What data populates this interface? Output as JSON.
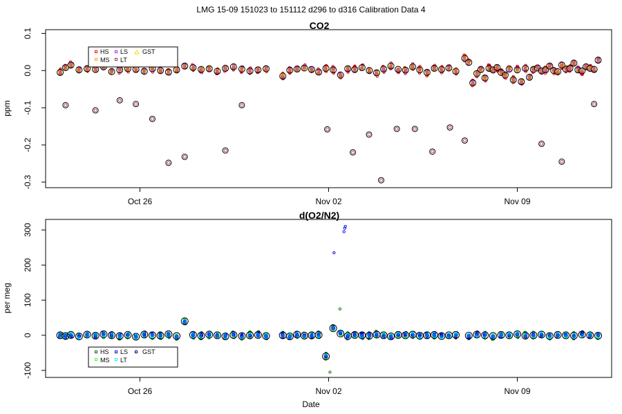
{
  "figure_title": "LMG   15-09    151023 to 151112    d296 to d316   Calibration Data 4",
  "chart_data": [
    {
      "type": "scatter",
      "title": "CO2",
      "ylabel": "ppm",
      "xlabel": "",
      "ylim": [
        -0.315,
        0.11
      ],
      "yticks": [
        0.1,
        0.0,
        -0.1,
        -0.2,
        -0.3
      ],
      "ytick_labels": [
        "0.1",
        "0.0",
        "-0.1",
        "-0.2",
        "-0.3"
      ],
      "xlim": [
        295.5,
        316.5
      ],
      "xticks": [
        299,
        306,
        313
      ],
      "xtick_labels": [
        "Oct 26",
        "Nov 02",
        "Nov 09"
      ],
      "legend": [
        "HS",
        "MS",
        "LS",
        "LT",
        "GST"
      ],
      "legend_position": "top-left",
      "colors": {
        "HS": "#ff0000",
        "MS": "#ffaa00",
        "LS": "#9933ff",
        "LT": "#aa3355",
        "GST": "#ffdd00",
        "mean": "#000000"
      },
      "lines_x": [
        296.04,
        296.24,
        296.44,
        296.74,
        297.04,
        297.35,
        297.65,
        297.95,
        298.25,
        298.55,
        298.85,
        299.16,
        299.46,
        299.76,
        300.06,
        300.36,
        300.66,
        300.97,
        301.27,
        301.57,
        301.87,
        302.17,
        302.47,
        302.78,
        303.08,
        303.38,
        303.68,
        304.3,
        304.56,
        304.83,
        305.1,
        305.37,
        305.63,
        305.9,
        306.17,
        306.44,
        306.71,
        306.97,
        307.24,
        307.51,
        307.78,
        308.04,
        308.31,
        308.58,
        308.85,
        309.12,
        309.38,
        309.65,
        309.92,
        310.19,
        310.46,
        310.72,
        311.05,
        311.2,
        311.35,
        311.5,
        311.65,
        311.8,
        311.95,
        312.1,
        312.25,
        312.4,
        312.55,
        312.7,
        312.85,
        313.0,
        313.15,
        313.3,
        313.45,
        313.6,
        313.75,
        313.9,
        314.05,
        314.2,
        314.35,
        314.5,
        314.65,
        314.8,
        314.95,
        315.1,
        315.25,
        315.4,
        315.55,
        315.7,
        315.85,
        316.0
      ],
      "lines_mean": [
        -0.005,
        0.008,
        0.015,
        0.002,
        0.005,
        0.003,
        0.01,
        -0.003,
        0.002,
        0.005,
        0.003,
        -0.002,
        0.005,
        0.0,
        -0.004,
        0.002,
        0.012,
        0.008,
        0.003,
        0.005,
        -0.002,
        0.006,
        0.01,
        0.004,
        -0.001,
        0.002,
        0.005,
        -0.015,
        0.001,
        0.004,
        0.007,
        0.003,
        -0.004,
        0.006,
        0.002,
        -0.012,
        0.005,
        0.003,
        0.008,
        0.0,
        -0.006,
        0.004,
        0.012,
        0.003,
        0.001,
        0.01,
        0.002,
        -0.005,
        0.006,
        0.003,
        0.007,
        -0.002,
        0.033,
        0.022,
        -0.033,
        -0.008,
        0.003,
        -0.02,
        0.006,
        0.002,
        0.008,
        -0.005,
        -0.012,
        0.004,
        -0.025,
        0.002,
        -0.03,
        0.006,
        -0.018,
        0.003,
        0.007,
        -0.001,
        0.002,
        0.012,
        0.0,
        -0.003,
        0.015,
        0.004,
        0.006,
        0.02,
        0.002,
        -0.001,
        0.01,
        0.006,
        0.003,
        0.028
      ],
      "outliers_x": [
        296.24,
        297.35,
        298.25,
        298.85,
        299.46,
        300.06,
        300.66,
        302.17,
        302.78,
        305.95,
        306.9,
        307.5,
        307.95,
        308.53,
        309.2,
        309.85,
        310.5,
        311.05,
        313.9,
        314.65,
        315.85
      ],
      "outliers_y": [
        -0.093,
        -0.107,
        -0.08,
        -0.09,
        -0.13,
        -0.248,
        -0.232,
        -0.215,
        -0.093,
        -0.158,
        -0.22,
        -0.172,
        -0.295,
        -0.157,
        -0.157,
        -0.218,
        -0.153,
        -0.188,
        -0.197,
        -0.245,
        -0.09
      ]
    },
    {
      "type": "scatter",
      "title": "d(O2/N2)",
      "ylabel": "per meg",
      "xlabel": "Date",
      "ylim": [
        -120,
        330
      ],
      "yticks": [
        -100,
        0,
        100,
        200,
        300
      ],
      "ytick_labels": [
        "-100",
        "0",
        "100",
        "200",
        "300"
      ],
      "xlim": [
        295.5,
        316.5
      ],
      "xticks": [
        299,
        306,
        313
      ],
      "xtick_labels": [
        "Oct 26",
        "Nov 02",
        "Nov 09"
      ],
      "legend": [
        "HS",
        "MS",
        "LS",
        "LT",
        "GST"
      ],
      "legend_position": "bottom-left",
      "colors": {
        "HS": "#006600",
        "MS": "#33ff33",
        "LS": "#0000ff",
        "LT": "#00ffff",
        "GST": "#000066",
        "mean": "#000000"
      },
      "lines_x": [
        296.04,
        296.24,
        296.44,
        296.74,
        297.04,
        297.35,
        297.65,
        297.95,
        298.25,
        298.55,
        298.85,
        299.16,
        299.46,
        299.76,
        300.06,
        300.36,
        300.66,
        300.97,
        301.27,
        301.57,
        301.87,
        302.17,
        302.47,
        302.78,
        303.08,
        303.38,
        303.68,
        304.3,
        304.56,
        304.83,
        305.1,
        305.37,
        305.63,
        305.9,
        306.17,
        306.44,
        306.71,
        306.97,
        307.24,
        307.51,
        307.78,
        308.04,
        308.31,
        308.58,
        308.85,
        309.12,
        309.38,
        309.65,
        309.92,
        310.19,
        310.46,
        310.72,
        311.2,
        311.5,
        311.8,
        312.1,
        312.4,
        312.7,
        313.0,
        313.3,
        313.6,
        313.9,
        314.2,
        314.5,
        314.8,
        315.1,
        315.4,
        315.7,
        316.0
      ],
      "lines_mean": [
        0,
        -2,
        1,
        -3,
        2,
        -1,
        3,
        0,
        -2,
        1,
        -4,
        2,
        0,
        -1,
        3,
        -2,
        40,
        1,
        -1,
        2,
        0,
        -3,
        1,
        -2,
        0,
        1,
        -2,
        0,
        -3,
        2,
        -1,
        0,
        1,
        -60,
        20,
        5,
        -2,
        1,
        0,
        -1,
        2,
        0,
        -3,
        1,
        0,
        2,
        -1,
        0,
        1,
        -2,
        0,
        1,
        -1,
        2,
        0,
        -2,
        1,
        0,
        3,
        -1,
        0,
        2,
        -2,
        1,
        0,
        -1,
        2,
        0,
        -1
      ],
      "outliers_x": [
        306.05,
        306.2,
        306.42,
        306.57,
        306.6,
        306.62
      ],
      "outliers_y": [
        -105,
        235,
        75,
        295,
        305,
        310
      ]
    }
  ]
}
